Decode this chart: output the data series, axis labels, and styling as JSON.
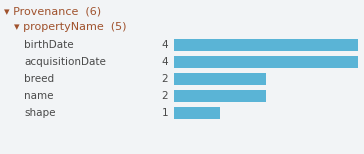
{
  "title_line1": "Provenance  (6)",
  "title_line2": "propertyName  (5)",
  "categories": [
    "birthDate",
    "acquisitionDate",
    "breed",
    "name",
    "shape"
  ],
  "values": [
    4,
    4,
    2,
    2,
    1
  ],
  "max_value": 4,
  "bar_color": "#5ab4d6",
  "background_color": "#f2f4f6",
  "text_color": "#4a4a4a",
  "title_color": "#a0522d",
  "font_size_title": 8.0,
  "font_size_label": 7.5,
  "font_size_value": 7.5
}
